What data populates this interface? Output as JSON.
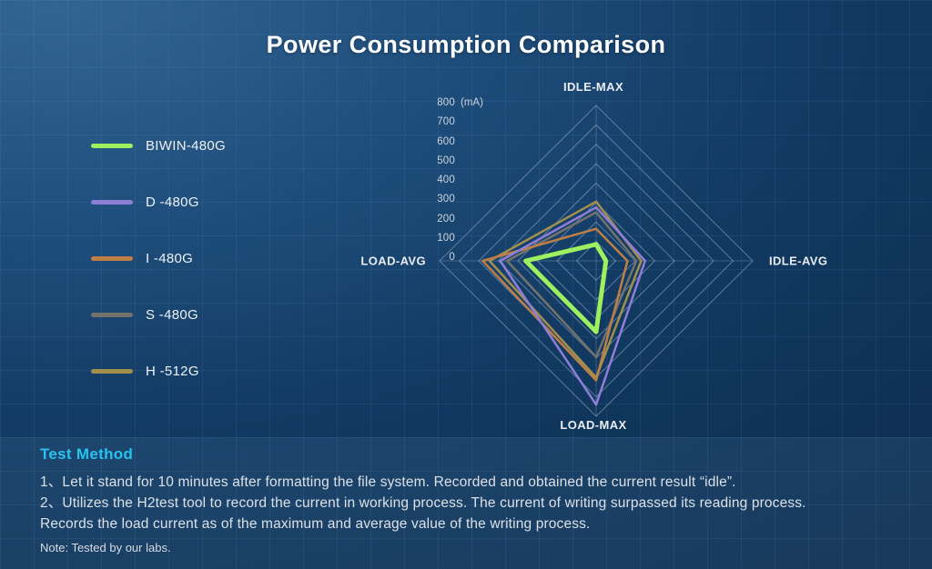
{
  "title": "Power Consumption Comparison",
  "chart_data": {
    "type": "radar",
    "axes": [
      "IDLE-MAX",
      "IDLE-AVG",
      "LOAD-MAX",
      "LOAD-AVG"
    ],
    "unit": "(mA)",
    "rmin": 0,
    "rmax": 800,
    "rstep": 100,
    "tick_labels": [
      "800",
      "700",
      "600",
      "500",
      "400",
      "300",
      "200",
      "100",
      "0"
    ],
    "grid": "concentric-diamond-rings",
    "legend_position": "left",
    "series": [
      {
        "name": "BIWIN-480G",
        "color": "#9df05e",
        "width": 5,
        "values": [
          85,
          50,
          365,
          360
        ]
      },
      {
        "name": "D -480G",
        "color": "#8f7ed8",
        "width": 2.5,
        "values": [
          275,
          250,
          740,
          490
        ]
      },
      {
        "name": "I -480G",
        "color": "#be7f46",
        "width": 2.5,
        "values": [
          165,
          160,
          615,
          580
        ]
      },
      {
        "name": "S -480G",
        "color": "#73736c",
        "width": 2.5,
        "values": [
          250,
          205,
          495,
          455
        ]
      },
      {
        "name": "H -512G",
        "color": "#a18f4d",
        "width": 2.5,
        "values": [
          305,
          230,
          600,
          545
        ]
      }
    ]
  },
  "test_method": {
    "heading": "Test Method",
    "lines": [
      "1、Let it stand for 10 minutes after formatting the file system. Recorded and obtained the current result “idle”.",
      "2、Utilizes the H2test tool to record the current in working process. The current of writing surpassed its reading process.",
      "Records the load current as of the maximum and average value of the writing process."
    ],
    "note": "Note: Tested by our labs."
  },
  "colors": {
    "background_top_left": "#336593",
    "background_bottom_right": "#0c2c4e",
    "heading_accent": "#27c3f0",
    "ring_line": "rgba(165,185,210,0.5)",
    "text_primary": "#fbfdfe"
  }
}
